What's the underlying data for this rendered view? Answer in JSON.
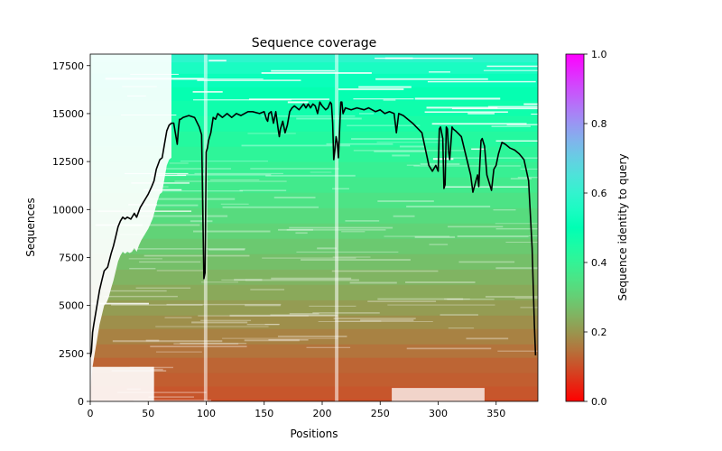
{
  "chart_data": {
    "type": "heatmap",
    "title": "Sequence coverage",
    "xlabel": "Positions",
    "ylabel": "Sequences",
    "xlim": [
      0,
      386
    ],
    "ylim": [
      0,
      18100
    ],
    "x_ticks": [
      0,
      50,
      100,
      150,
      200,
      250,
      300,
      350
    ],
    "y_ticks": [
      0,
      2500,
      5000,
      7500,
      10000,
      12500,
      15000,
      17500
    ],
    "colorbar": {
      "label": "Sequence identity to query",
      "range": [
        0.0,
        1.0
      ],
      "ticks": [
        "0.0",
        "0.2",
        "0.4",
        "0.6",
        "0.8",
        "1.0"
      ],
      "colormap": "rainbow_r"
    },
    "coverage_line": {
      "name": "coverage",
      "color": "#000000",
      "x": [
        0,
        1,
        2,
        3,
        5,
        8,
        10,
        12,
        15,
        18,
        20,
        22,
        24,
        26,
        28,
        30,
        32,
        35,
        38,
        40,
        43,
        46,
        48,
        50,
        53,
        55,
        57,
        60,
        62,
        64,
        66,
        68,
        70,
        72,
        75,
        76,
        77,
        78,
        80,
        85,
        90,
        94,
        96,
        98,
        99,
        100,
        101,
        102,
        104,
        106,
        108,
        110,
        114,
        118,
        122,
        126,
        130,
        136,
        140,
        146,
        150,
        152,
        153,
        154,
        156,
        158,
        160,
        162,
        163,
        164,
        166,
        168,
        170,
        172,
        174,
        176,
        180,
        184,
        186,
        188,
        190,
        192,
        194,
        196,
        198,
        200,
        203,
        205,
        207,
        208,
        209,
        210,
        211,
        212,
        213,
        214,
        216,
        217,
        218,
        220,
        225,
        230,
        236,
        240,
        246,
        250,
        254,
        258,
        262,
        264,
        266,
        270,
        278,
        286,
        292,
        295,
        298,
        300,
        301,
        302,
        304,
        305,
        306,
        307,
        308,
        309,
        310,
        312,
        313,
        315,
        320,
        328,
        330,
        333,
        334,
        335,
        336,
        337,
        338,
        340,
        342,
        344,
        346,
        348,
        350,
        352,
        355,
        358,
        362,
        366,
        370,
        374,
        378,
        381,
        383,
        384,
        385,
        386
      ],
      "y": [
        2300,
        2600,
        3600,
        4000,
        4700,
        5800,
        6300,
        6800,
        7000,
        7700,
        8100,
        8600,
        9100,
        9400,
        9600,
        9500,
        9600,
        9500,
        9800,
        9600,
        10100,
        10400,
        10600,
        10800,
        11200,
        11500,
        12100,
        12600,
        12700,
        13400,
        14100,
        14400,
        14500,
        14500,
        13400,
        14200,
        14700,
        14700,
        14800,
        14900,
        14800,
        14300,
        13900,
        6400,
        6700,
        13000,
        13200,
        13600,
        14000,
        14800,
        14700,
        15000,
        14800,
        15000,
        14800,
        15000,
        14900,
        15100,
        15100,
        15000,
        15100,
        14700,
        14600,
        15000,
        15100,
        14500,
        15100,
        14200,
        13800,
        14200,
        14600,
        14000,
        14400,
        15100,
        15300,
        15400,
        15200,
        15500,
        15300,
        15500,
        15300,
        15500,
        15400,
        15000,
        15600,
        15400,
        15200,
        15300,
        15600,
        15500,
        14500,
        12600,
        13100,
        13800,
        13500,
        12700,
        15600,
        15600,
        15000,
        15300,
        15200,
        15300,
        15200,
        15300,
        15100,
        15200,
        15000,
        15100,
        15000,
        14000,
        15000,
        14900,
        14500,
        14000,
        12300,
        12000,
        12300,
        12000,
        14200,
        14300,
        13700,
        11100,
        11300,
        14300,
        14200,
        13000,
        12600,
        14300,
        14200,
        14100,
        13800,
        11800,
        10900,
        11600,
        11800,
        11200,
        12500,
        13600,
        13700,
        13300,
        11800,
        11400,
        11000,
        12100,
        12300,
        12900,
        13500,
        13400,
        13200,
        13100,
        12900,
        12600,
        11500,
        8000,
        4000,
        2400
      ]
    },
    "identity_bands": [
      {
        "start": 0,
        "end": 150,
        "identity": 0.1
      },
      {
        "start": 150,
        "end": 800,
        "identity": 0.11
      },
      {
        "start": 800,
        "end": 1500,
        "identity": 0.12
      },
      {
        "start": 1500,
        "end": 2300,
        "identity": 0.13
      },
      {
        "start": 2300,
        "end": 3000,
        "identity": 0.15
      },
      {
        "start": 3000,
        "end": 3800,
        "identity": 0.17
      },
      {
        "start": 3800,
        "end": 4500,
        "identity": 0.19
      },
      {
        "start": 4500,
        "end": 5300,
        "identity": 0.21
      },
      {
        "start": 5300,
        "end": 6100,
        "identity": 0.23
      },
      {
        "start": 6100,
        "end": 6900,
        "identity": 0.25
      },
      {
        "start": 6900,
        "end": 7700,
        "identity": 0.27
      },
      {
        "start": 7700,
        "end": 8500,
        "identity": 0.29
      },
      {
        "start": 8500,
        "end": 9300,
        "identity": 0.31
      },
      {
        "start": 9300,
        "end": 10100,
        "identity": 0.33
      },
      {
        "start": 10100,
        "end": 10900,
        "identity": 0.35
      },
      {
        "start": 10900,
        "end": 11700,
        "identity": 0.37
      },
      {
        "start": 11700,
        "end": 12500,
        "identity": 0.39
      },
      {
        "start": 12500,
        "end": 13300,
        "identity": 0.41
      },
      {
        "start": 13300,
        "end": 14100,
        "identity": 0.43
      },
      {
        "start": 14100,
        "end": 14900,
        "identity": 0.45
      },
      {
        "start": 14900,
        "end": 15700,
        "identity": 0.47
      },
      {
        "start": 15700,
        "end": 16400,
        "identity": 0.49
      },
      {
        "start": 16400,
        "end": 17100,
        "identity": 0.52
      },
      {
        "start": 17100,
        "end": 17700,
        "identity": 0.55
      },
      {
        "start": 17700,
        "end": 18100,
        "identity": 0.59
      }
    ]
  }
}
